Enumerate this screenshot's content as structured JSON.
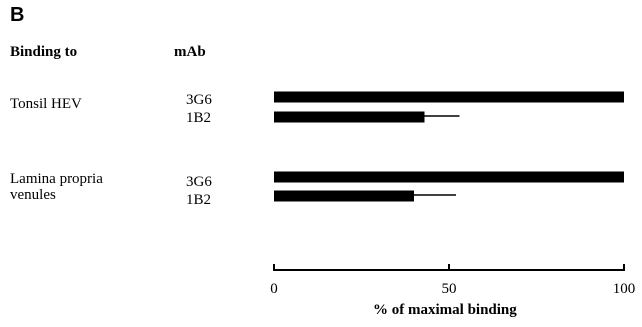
{
  "panel_label": "B",
  "headers": {
    "binding_to": "Binding to",
    "mab": "mAb"
  },
  "groups": [
    {
      "label_lines": [
        "Tonsil HEV"
      ],
      "mabs": [
        "3G6",
        "1B2"
      ]
    },
    {
      "label_lines": [
        "Lamina propria",
        "venules"
      ],
      "mabs": [
        "3G6",
        "1B2"
      ]
    }
  ],
  "chart_data": {
    "type": "bar",
    "orientation": "horizontal",
    "xlabel": "% of maximal binding",
    "xlim": [
      0,
      100
    ],
    "xticks": [
      0,
      50,
      100
    ],
    "categories": [
      "Tonsil HEV 3G6",
      "Tonsil HEV 1B2",
      "Lamina propria venules 3G6",
      "Lamina propria venules 1B2"
    ],
    "values": [
      100,
      43,
      100,
      40
    ],
    "error_plus": [
      0,
      10,
      0,
      12
    ],
    "bar_color": "#000000"
  }
}
